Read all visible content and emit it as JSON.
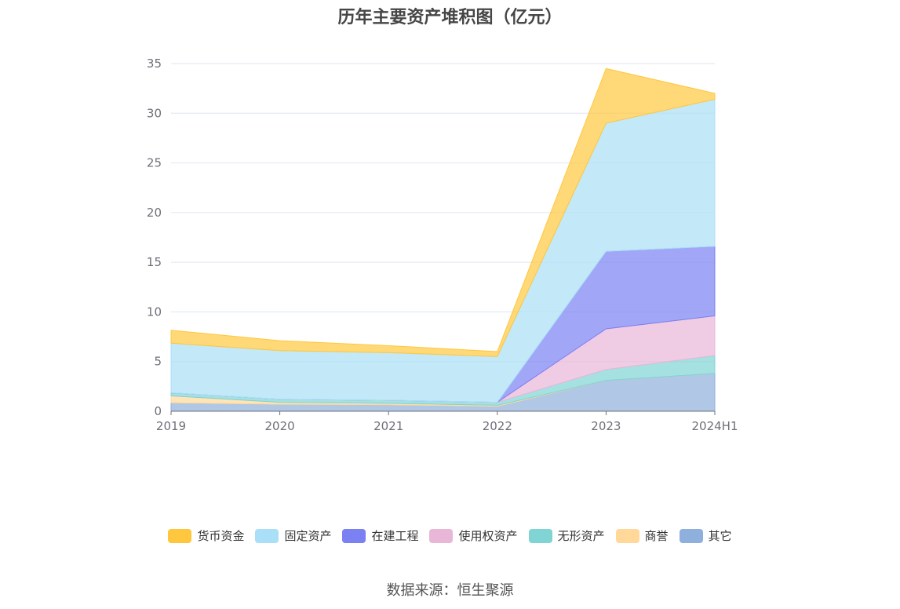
{
  "title": "历年主要资产堆积图（亿元）",
  "source": "数据来源：恒生聚源",
  "colors": {
    "货币资金": "#FFC73E",
    "固定资产": "#A9DFF7",
    "在建工程": "#7B80F2",
    "使用权资产": "#E8B7D8",
    "无形资产": "#80D4D4",
    "商誉": "#FFD89A",
    "其它": "#8FAFDC"
  },
  "chart_data": {
    "type": "area",
    "stacked": true,
    "title": "历年主要资产堆积图（亿元）",
    "categories": [
      "2019",
      "2020",
      "2021",
      "2022",
      "2023",
      "2024H1"
    ],
    "ylim": [
      0,
      35
    ],
    "yticks": [
      0,
      5,
      10,
      15,
      20,
      25,
      30,
      35
    ],
    "grid": true,
    "legend_position": "bottom",
    "series": [
      {
        "name": "其它",
        "values": [
          0.85,
          0.7,
          0.65,
          0.5,
          3.1,
          3.8
        ]
      },
      {
        "name": "商誉",
        "values": [
          0.7,
          0.2,
          0.15,
          0.1,
          0.0,
          0.0
        ]
      },
      {
        "name": "无形资产",
        "values": [
          0.3,
          0.3,
          0.3,
          0.3,
          1.1,
          1.8
        ]
      },
      {
        "name": "使用权资产",
        "values": [
          0.0,
          0.0,
          0.0,
          0.0,
          4.1,
          4.0
        ]
      },
      {
        "name": "在建工程",
        "values": [
          0.0,
          0.0,
          0.0,
          0.0,
          7.8,
          7.0
        ]
      },
      {
        "name": "固定资产",
        "values": [
          5.0,
          4.9,
          4.8,
          4.6,
          12.9,
          14.8
        ]
      },
      {
        "name": "货币资金",
        "values": [
          1.3,
          1.0,
          0.7,
          0.5,
          5.5,
          0.6
        ]
      }
    ]
  }
}
